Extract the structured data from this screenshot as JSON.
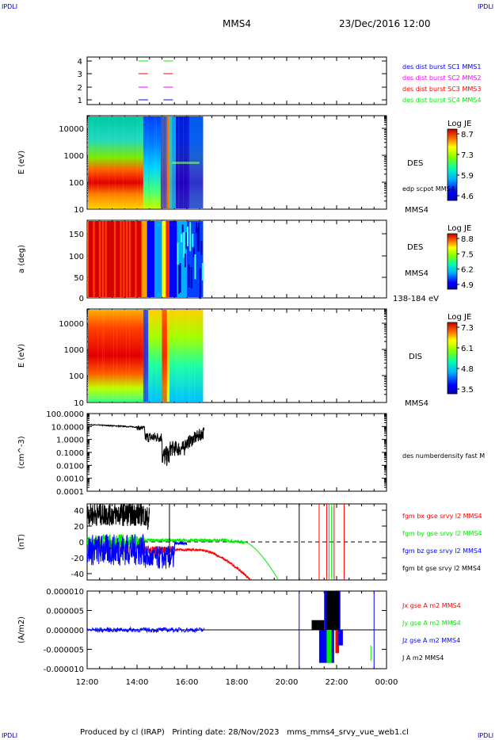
{
  "header": {
    "corner_left": "IPDLI",
    "corner_right": "IPDLI",
    "spacecraft": "MMS4",
    "datetime": "23/Dec/2016 12:00"
  },
  "footer": {
    "text": "Produced by cl (IRAP)   Printing date: 28/Nov/2023   mms_mms4_srvy_vue_web1.cl",
    "corner_left": "IPDLI",
    "corner_right": "IPDLI"
  },
  "colors": {
    "blue": "#0000ff",
    "magenta": "#ff00ff",
    "red": "#ff0000",
    "green": "#00ee00",
    "black": "#000000"
  },
  "chart_data": [
    {
      "type": "scatter",
      "id": "burst",
      "yticks": [
        "4",
        "3",
        "2",
        "1"
      ],
      "legend": [
        {
          "label": "des dist burst SC1 MMS1",
          "color": "#0000ff"
        },
        {
          "label": "des dist burst SC2 MMS2",
          "color": "#ff00ff"
        },
        {
          "label": "des dist burst SC3 MMS3",
          "color": "#ff0000"
        },
        {
          "label": "des dist burst SC4 MMS4",
          "color": "#00ee00"
        }
      ],
      "bursts": [
        {
          "sc": 4,
          "color": "#00ee00",
          "times": [
            "14:15",
            "15:15"
          ]
        },
        {
          "sc": 3,
          "color": "#ff0000",
          "times": [
            "14:15",
            "15:15"
          ]
        },
        {
          "sc": 2,
          "color": "#ff00ff",
          "times": [
            "14:15",
            "15:15"
          ]
        },
        {
          "sc": 1,
          "color": "#0000ff",
          "times": [
            "14:15",
            "15:15"
          ]
        }
      ]
    },
    {
      "type": "heatmap",
      "id": "des_energy",
      "ylabel": "E (eV)",
      "yticks": [
        "10000",
        "1000",
        "100",
        "10"
      ],
      "right_label": "DES",
      "overlay_label": "edp scpot MMS4",
      "bottom_label": "MMS4",
      "colorbar": {
        "title": "Log JE",
        "ticks": [
          "8.7",
          "7.3",
          "5.9",
          "4.6"
        ]
      }
    },
    {
      "type": "heatmap",
      "id": "des_pitch",
      "ylabel": "a (deg)",
      "yticks": [
        "150",
        "100",
        "50",
        "0"
      ],
      "right_label": "DES",
      "right_label2": "MMS4",
      "bottom_label": "138-184 eV",
      "colorbar": {
        "title": "Log JE",
        "ticks": [
          "8.8",
          "7.5",
          "6.2",
          "4.9"
        ]
      }
    },
    {
      "type": "heatmap",
      "id": "dis_energy",
      "ylabel": "E (eV)",
      "yticks": [
        "10000",
        "1000",
        "100",
        "10"
      ],
      "right_label": "DIS",
      "bottom_label": "MMS4",
      "colorbar": {
        "title": "Log JE",
        "ticks": [
          "7.3",
          "6.1",
          "4.8",
          "3.5"
        ]
      }
    },
    {
      "type": "line",
      "id": "density",
      "ylabel": "(cm^-3)",
      "yticks": [
        "100.0000",
        "10.0000",
        "1.0000",
        "0.1000",
        "0.0100",
        "0.0010",
        "0.0001"
      ],
      "ylim": [
        0.0001,
        100
      ],
      "series": [
        {
          "name": "des numberdensity fast M",
          "color": "#000000"
        }
      ]
    },
    {
      "type": "line",
      "id": "fgm",
      "ylabel": "(nT)",
      "yticks": [
        "40",
        "20",
        "0",
        "-20",
        "-40"
      ],
      "ylim": [
        -48,
        48
      ],
      "series": [
        {
          "name": "fgm bx gse srvy l2 MMS4",
          "color": "#ff0000"
        },
        {
          "name": "fgm by gse srvy l2 MMS4",
          "color": "#00ee00"
        },
        {
          "name": "fgm bz gse srvy l2 MMS4",
          "color": "#0000ff"
        },
        {
          "name": "fgm bt gse srvy l2 MMS4",
          "color": "#000000"
        }
      ]
    },
    {
      "type": "line",
      "id": "current",
      "ylabel": "(A/m2)",
      "yticks": [
        "0.000010",
        "0.000005",
        "0.000000",
        "-0.000005",
        "-0.000010"
      ],
      "ylim": [
        -1e-05,
        1e-05
      ],
      "series": [
        {
          "name": "Jx gse A m2 MMS4",
          "color": "#ff0000"
        },
        {
          "name": "Jy gse A m2 MMS4",
          "color": "#00ee00"
        },
        {
          "name": "Jz gse A m2 MMS4",
          "color": "#0000ff"
        },
        {
          "name": "J A m2 MMS4",
          "color": "#000000"
        }
      ],
      "xticks": [
        "12:00",
        "14:00",
        "16:00",
        "18:00",
        "20:00",
        "22:00",
        "00:00"
      ]
    }
  ]
}
